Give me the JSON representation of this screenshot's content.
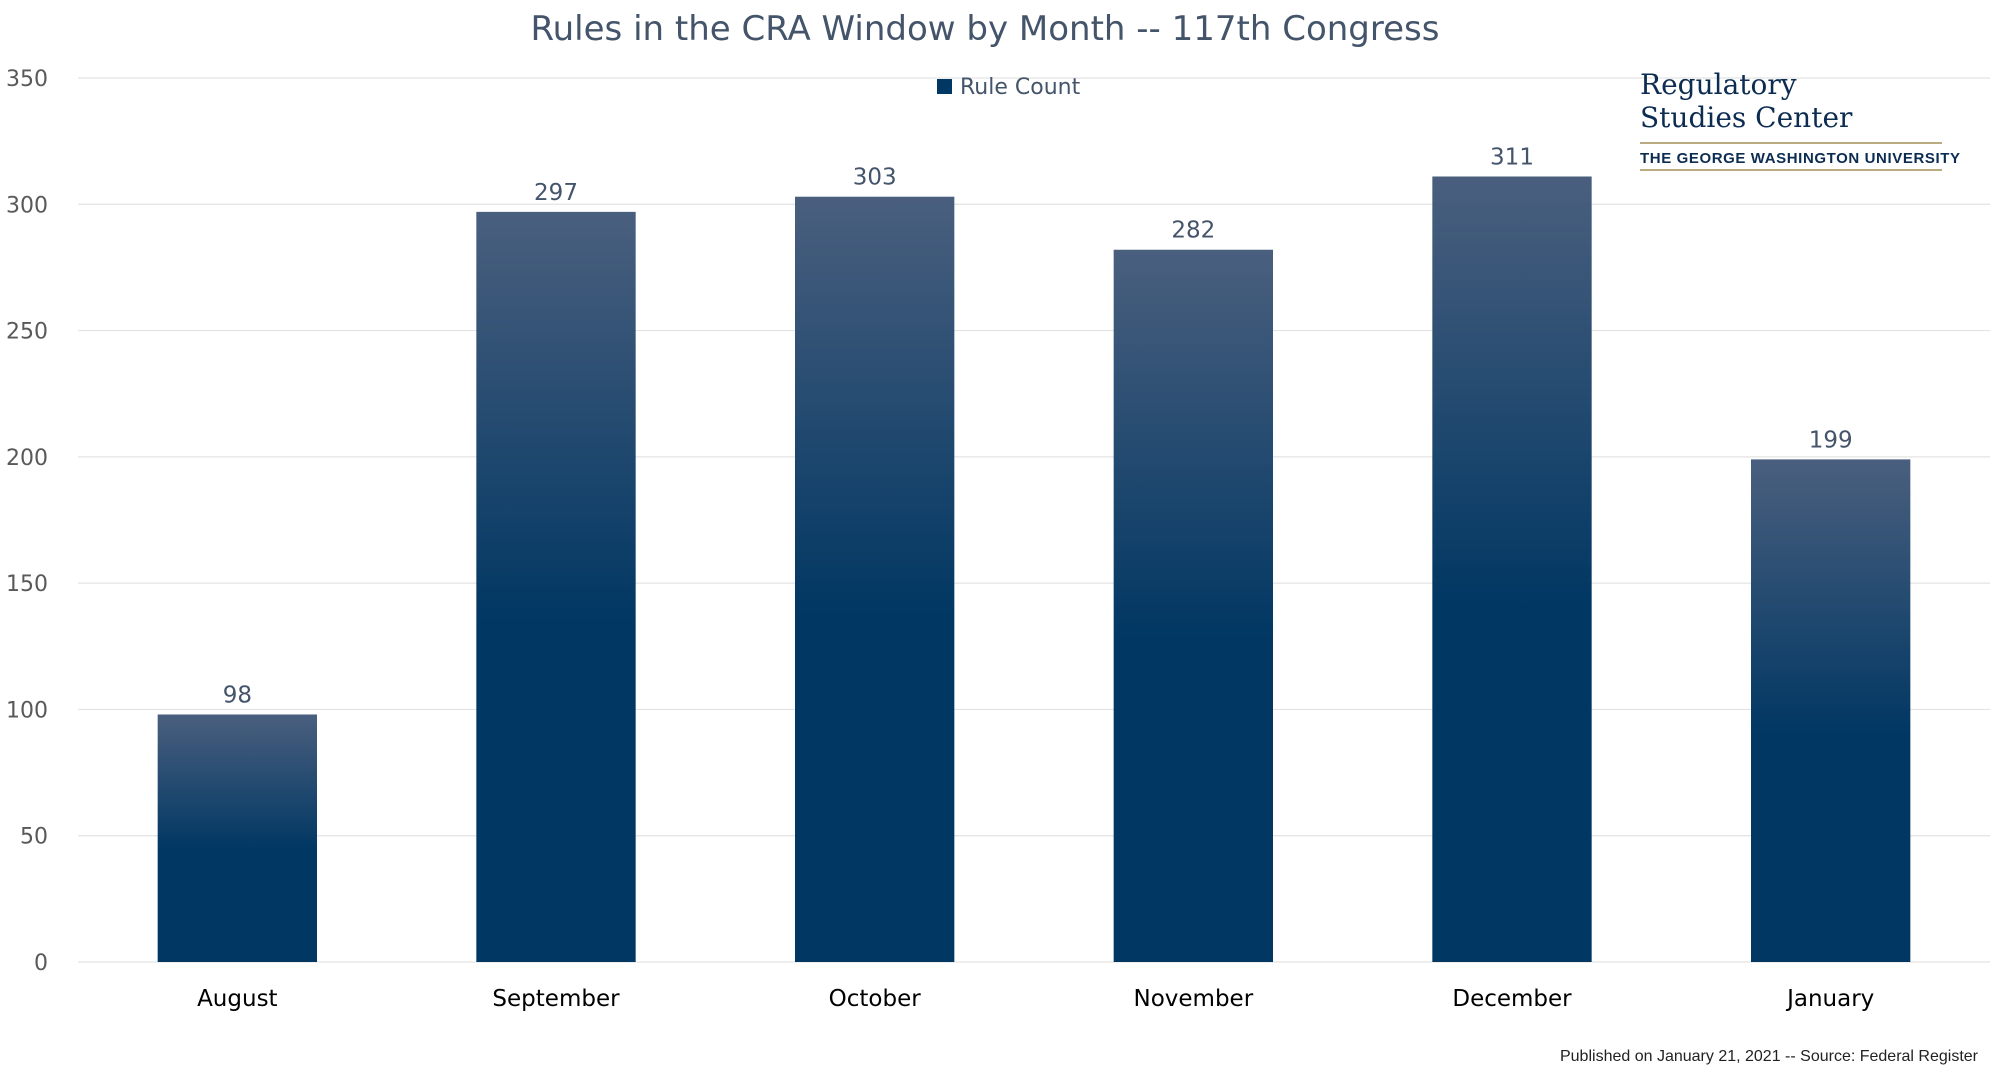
{
  "chart_data": {
    "type": "bar",
    "title": "Rules in the CRA Window by Month -- 117th Congress",
    "categories": [
      "August",
      "September",
      "October",
      "November",
      "December",
      "January"
    ],
    "series": [
      {
        "name": "Rule Count",
        "values": [
          98,
          297,
          303,
          282,
          311,
          199
        ]
      }
    ],
    "xlabel": "",
    "ylabel": "",
    "ylim": [
      0,
      350
    ],
    "yticks": [
      0,
      50,
      100,
      150,
      200,
      250,
      300,
      350
    ],
    "grid": true,
    "legend_position": "top-center",
    "data_labels": true
  },
  "colors": {
    "bar_top": "#4a5f7e",
    "bar_bottom": "#003763",
    "title": "#44546a",
    "grid": "#e3e3e3",
    "logo": "#0c2c52",
    "logo_rule": "#a39056"
  },
  "logo": {
    "line1": "Regulatory",
    "line2": "Studies Center",
    "line3": "THE GEORGE WASHINGTON UNIVERSITY"
  },
  "footer": {
    "source": "Published on January 21, 2021 --  Source: Federal Register"
  }
}
